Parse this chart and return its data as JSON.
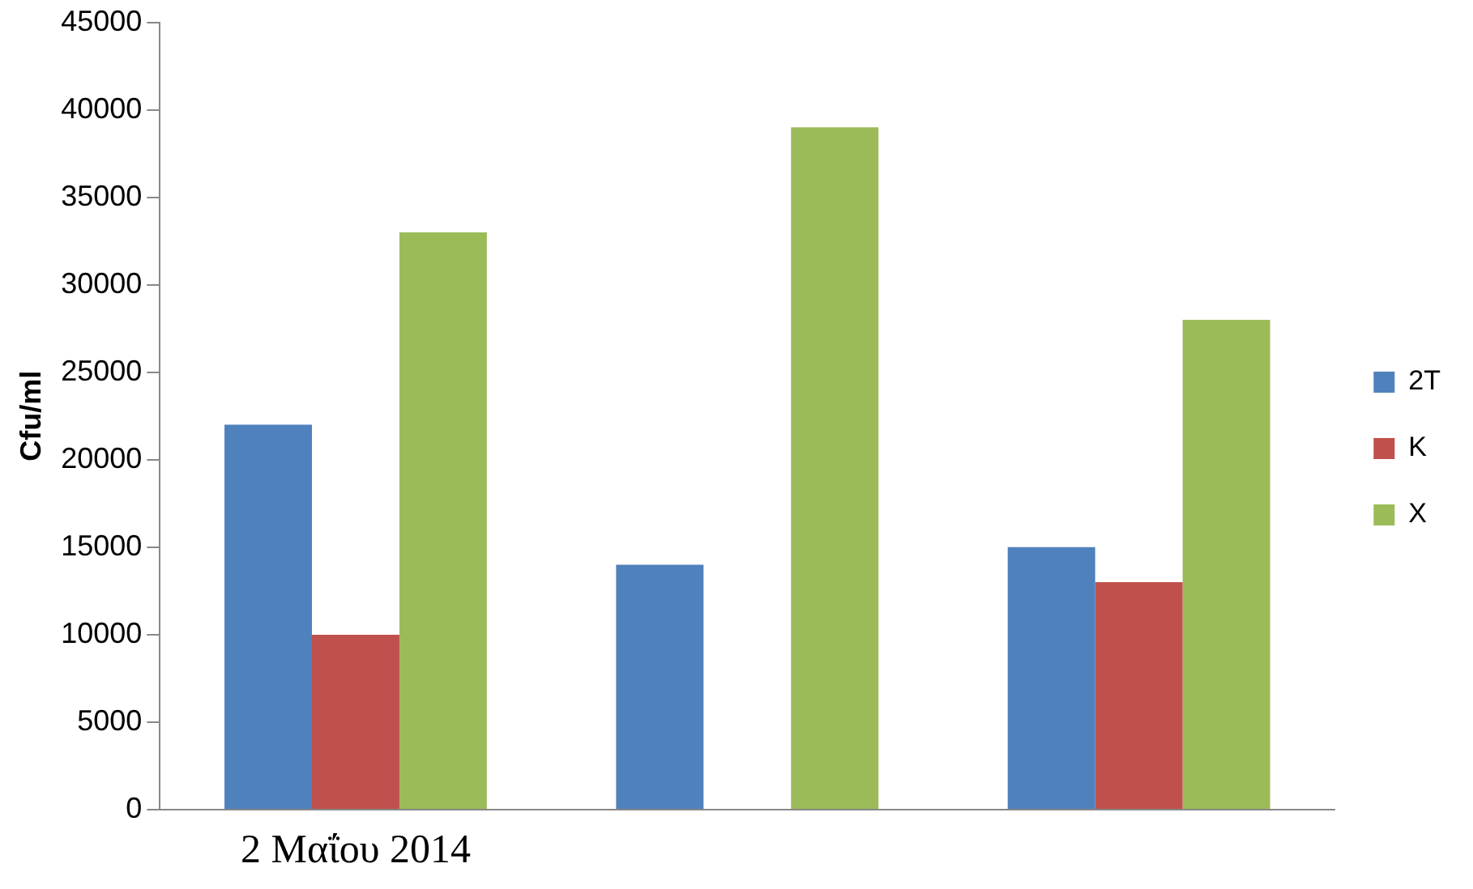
{
  "chart_data": {
    "type": "bar",
    "ylabel": "Cfu/ml",
    "categories": [
      "2 Μαΐου 2014",
      null,
      null
    ],
    "series": [
      {
        "name": "2T",
        "color": "#4f81bd",
        "values": [
          22000,
          14000,
          15000
        ]
      },
      {
        "name": "K",
        "color": "#c0504d",
        "values": [
          10000,
          null,
          13000
        ]
      },
      {
        "name": "X",
        "color": "#9bbb59",
        "values": [
          33000,
          39000,
          28000
        ]
      }
    ],
    "ylim": [
      0,
      45000
    ],
    "yticks": [
      0,
      5000,
      10000,
      15000,
      20000,
      25000,
      30000,
      35000,
      40000,
      45000
    ],
    "grid": false,
    "legend": "right"
  }
}
